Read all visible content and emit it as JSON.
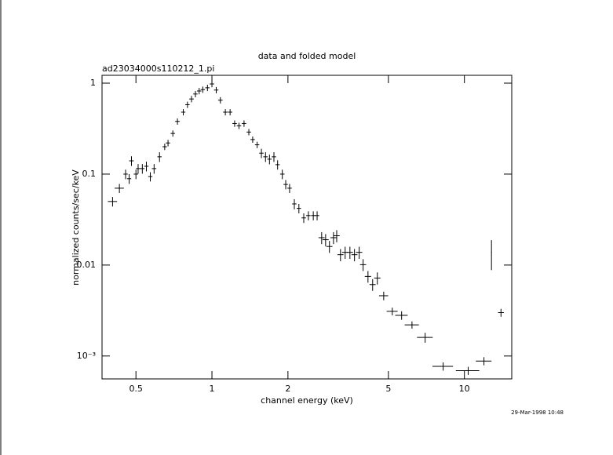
{
  "chart_data": {
    "type": "scatter",
    "title": "data and folded model",
    "subtitle": "ad23034000s110212_1.pi",
    "x_label": "channel energy (keV)",
    "y_label": "normalized counts/sec/keV",
    "annotation": "29-Mar-1998 10:48",
    "x_scale": "log",
    "y_scale": "log",
    "color": "#000000",
    "xlim": [
      0.367,
      15.4
    ],
    "ylim": [
      0.00056,
      1.22
    ],
    "xticks": [
      0.5,
      1,
      2,
      5,
      10
    ],
    "yticks": [
      1,
      0.1,
      0.01,
      {
        "value": 0.001,
        "label": "10⁻³"
      }
    ],
    "x": [
      0.404,
      0.43,
      0.455,
      0.47,
      0.48,
      0.5,
      0.51,
      0.53,
      0.55,
      0.57,
      0.59,
      0.62,
      0.65,
      0.67,
      0.7,
      0.73,
      0.77,
      0.8,
      0.83,
      0.86,
      0.89,
      0.92,
      0.96,
      1.0,
      1.04,
      1.08,
      1.13,
      1.18,
      1.23,
      1.28,
      1.34,
      1.4,
      1.45,
      1.51,
      1.57,
      1.63,
      1.69,
      1.76,
      1.82,
      1.9,
      1.96,
      2.03,
      2.12,
      2.21,
      2.31,
      2.41,
      2.52,
      2.61,
      2.72,
      2.82,
      2.92,
      3.03,
      3.12,
      3.23,
      3.37,
      3.52,
      3.67,
      3.83,
      3.97,
      4.15,
      4.33,
      4.52,
      4.79,
      5.18,
      5.64,
      6.2,
      6.99,
      8.24,
      10.35,
      11.95,
      12.8,
      13.96
    ],
    "xerr": [
      0.017,
      0.018,
      0.009,
      0.009,
      0.01,
      0.01,
      0.01,
      0.011,
      0.011,
      0.011,
      0.012,
      0.012,
      0.013,
      0.013,
      0.014,
      0.015,
      0.015,
      0.016,
      0.017,
      0.017,
      0.018,
      0.018,
      0.019,
      0.02,
      0.021,
      0.022,
      0.023,
      0.024,
      0.025,
      0.026,
      0.027,
      0.028,
      0.029,
      0.03,
      0.031,
      0.033,
      0.034,
      0.035,
      0.036,
      0.038,
      0.039,
      0.041,
      0.042,
      0.044,
      0.046,
      0.048,
      0.05,
      0.052,
      0.076,
      0.079,
      0.082,
      0.085,
      0.087,
      0.09,
      0.094,
      0.099,
      0.1,
      0.11,
      0.11,
      0.12,
      0.12,
      0.13,
      0.2,
      0.26,
      0.32,
      0.4,
      0.5,
      0.77,
      1.1,
      0.85,
      0.04,
      0.37
    ],
    "values": [
      0.05,
      0.07,
      0.1,
      0.089,
      0.14,
      0.1,
      0.115,
      0.115,
      0.122,
      0.094,
      0.115,
      0.155,
      0.2,
      0.22,
      0.28,
      0.38,
      0.48,
      0.58,
      0.67,
      0.76,
      0.82,
      0.85,
      0.89,
      0.98,
      0.84,
      0.65,
      0.48,
      0.48,
      0.36,
      0.34,
      0.36,
      0.29,
      0.24,
      0.21,
      0.17,
      0.155,
      0.146,
      0.155,
      0.127,
      0.1,
      0.077,
      0.07,
      0.047,
      0.042,
      0.033,
      0.035,
      0.035,
      0.035,
      0.02,
      0.019,
      0.016,
      0.02,
      0.021,
      0.013,
      0.0138,
      0.0138,
      0.013,
      0.0138,
      0.0101,
      0.0075,
      0.0061,
      0.0072,
      0.0046,
      0.0031,
      0.0028,
      0.0022,
      0.0016,
      0.00077,
      0.00069,
      0.00088,
      0.0138,
      0.003
    ],
    "yerr": [
      0.006,
      0.008,
      0.012,
      0.011,
      0.017,
      0.012,
      0.014,
      0.014,
      0.015,
      0.011,
      0.014,
      0.019,
      0.016,
      0.018,
      0.022,
      0.03,
      0.038,
      0.046,
      0.054,
      0.061,
      0.066,
      0.068,
      0.071,
      0.078,
      0.067,
      0.052,
      0.038,
      0.038,
      0.029,
      0.027,
      0.029,
      0.023,
      0.019,
      0.017,
      0.02,
      0.019,
      0.018,
      0.019,
      0.015,
      0.012,
      0.009,
      0.008,
      0.006,
      0.005,
      0.004,
      0.004,
      0.004,
      0.004,
      0.003,
      0.0029,
      0.0024,
      0.003,
      0.0032,
      0.002,
      0.0021,
      0.0021,
      0.002,
      0.0021,
      0.0015,
      0.0011,
      0.0009,
      0.0011,
      0.0005,
      0.0003,
      0.0003,
      0.0002,
      0.0002,
      8e-05,
      7e-05,
      9e-05,
      0.005,
      0.0003
    ]
  }
}
